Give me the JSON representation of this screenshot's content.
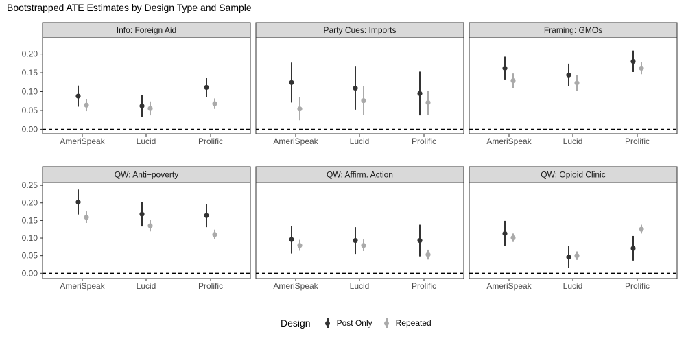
{
  "chart_data": {
    "type": "scatter",
    "title": "Bootstrapped ATE Estimates by Design Type and Sample",
    "xlabel": "",
    "ylabel": "",
    "ylim": [
      -0.012,
      0.243
    ],
    "ylim_row2": [
      -0.015,
      0.258
    ],
    "yticks_row1": [
      "0.00",
      "0.05",
      "0.10",
      "0.15",
      "0.20"
    ],
    "yticks_row2": [
      "0.00",
      "0.05",
      "0.10",
      "0.15",
      "0.20",
      "0.25"
    ],
    "categories": [
      "AmeriSpeak",
      "Lucid",
      "Prolific"
    ],
    "reference_line": 0,
    "legend": {
      "title": "Design",
      "position": "bottom",
      "items": [
        {
          "label": "Post Only",
          "color": "#333333"
        },
        {
          "label": "Repeated",
          "color": "#aaaaaa"
        }
      ]
    },
    "grid": false,
    "panels": [
      {
        "title": "Info: Foreign Aid",
        "series": [
          {
            "name": "Post Only",
            "estimate": [
              0.088,
              0.062,
              0.111
            ],
            "lower": [
              0.06,
              0.033,
              0.085
            ],
            "upper": [
              0.116,
              0.091,
              0.136
            ]
          },
          {
            "name": "Repeated",
            "estimate": [
              0.064,
              0.055,
              0.068
            ],
            "lower": [
              0.048,
              0.037,
              0.054
            ],
            "upper": [
              0.08,
              0.074,
              0.082
            ]
          }
        ]
      },
      {
        "title": "Party Cues: Imports",
        "series": [
          {
            "name": "Post Only",
            "estimate": [
              0.124,
              0.109,
              0.095
            ],
            "lower": [
              0.071,
              0.052,
              0.037
            ],
            "upper": [
              0.177,
              0.168,
              0.153
            ]
          },
          {
            "name": "Repeated",
            "estimate": [
              0.054,
              0.076,
              0.071
            ],
            "lower": [
              0.024,
              0.038,
              0.039
            ],
            "upper": [
              0.085,
              0.114,
              0.102
            ]
          }
        ]
      },
      {
        "title": "Framing: GMOs",
        "series": [
          {
            "name": "Post Only",
            "estimate": [
              0.162,
              0.144,
              0.18
            ],
            "lower": [
              0.132,
              0.114,
              0.152
            ],
            "upper": [
              0.193,
              0.174,
              0.209
            ]
          },
          {
            "name": "Repeated",
            "estimate": [
              0.129,
              0.123,
              0.162
            ],
            "lower": [
              0.11,
              0.102,
              0.146
            ],
            "upper": [
              0.148,
              0.143,
              0.178
            ]
          }
        ]
      },
      {
        "title": "QW: Anti−poverty",
        "series": [
          {
            "name": "Post Only",
            "estimate": [
              0.202,
              0.168,
              0.164
            ],
            "lower": [
              0.167,
              0.133,
              0.131
            ],
            "upper": [
              0.238,
              0.203,
              0.196
            ]
          },
          {
            "name": "Repeated",
            "estimate": [
              0.159,
              0.135,
              0.11
            ],
            "lower": [
              0.143,
              0.119,
              0.097
            ],
            "upper": [
              0.176,
              0.151,
              0.124
            ]
          }
        ]
      },
      {
        "title": "QW: Affirm. Action",
        "series": [
          {
            "name": "Post Only",
            "estimate": [
              0.096,
              0.093,
              0.093
            ],
            "lower": [
              0.056,
              0.055,
              0.048
            ],
            "upper": [
              0.135,
              0.131,
              0.138
            ]
          },
          {
            "name": "Repeated",
            "estimate": [
              0.079,
              0.079,
              0.053
            ],
            "lower": [
              0.064,
              0.063,
              0.039
            ],
            "upper": [
              0.095,
              0.096,
              0.067
            ]
          }
        ]
      },
      {
        "title": "QW: Opioid Clinic",
        "series": [
          {
            "name": "Post Only",
            "estimate": [
              0.113,
              0.046,
              0.071
            ],
            "lower": [
              0.078,
              0.016,
              0.036
            ],
            "upper": [
              0.149,
              0.077,
              0.106
            ]
          },
          {
            "name": "Repeated",
            "estimate": [
              0.101,
              0.05,
              0.125
            ],
            "lower": [
              0.089,
              0.038,
              0.113
            ],
            "upper": [
              0.113,
              0.062,
              0.138
            ]
          }
        ]
      }
    ]
  }
}
